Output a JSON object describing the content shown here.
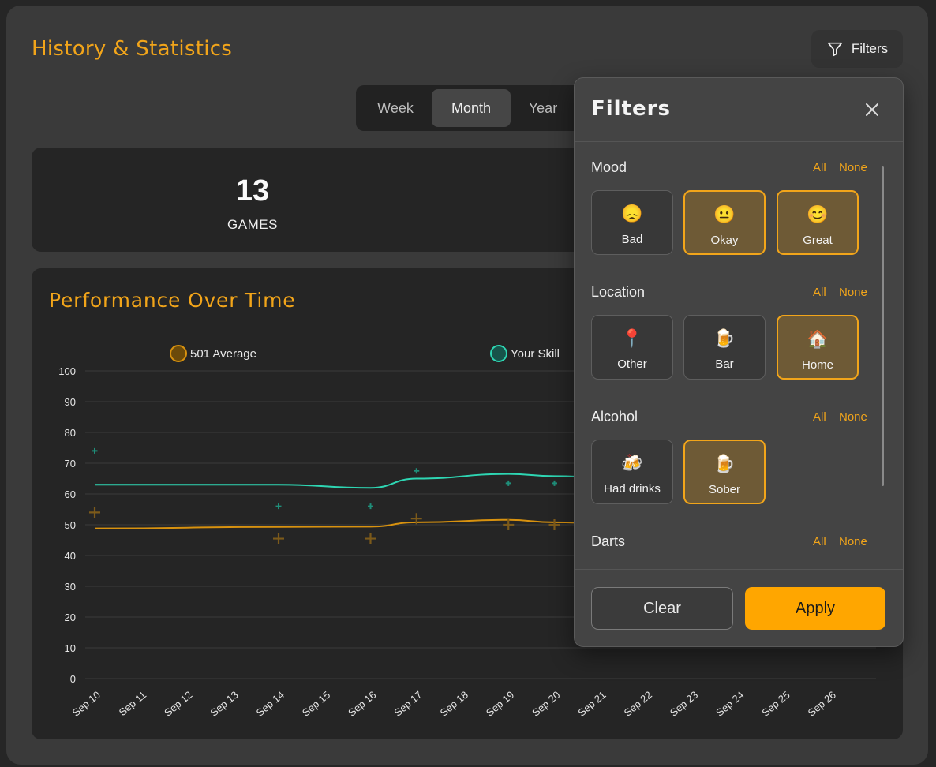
{
  "header": {
    "title": "History & Statistics",
    "filters_label": "Filters"
  },
  "period_tabs": [
    "Week",
    "Month",
    "Year"
  ],
  "active_period": "Month",
  "stats": {
    "games_value": "13",
    "games_label": "GAMES"
  },
  "icons": [
    "filter-icon",
    "close-icon"
  ],
  "colors": {
    "accent": "#f2a51a",
    "skill": "#2ed6b3",
    "average": "#d8920f"
  },
  "chart_data": {
    "type": "line",
    "title": "Performance Over Time",
    "legend": [
      {
        "name": "501 Average",
        "color": "#d8920f"
      },
      {
        "name": "Your Skill",
        "color": "#2ed6b3"
      }
    ],
    "legend_position": "top",
    "ylim": [
      0,
      100
    ],
    "yticks": [
      0,
      10,
      20,
      30,
      40,
      50,
      60,
      70,
      80,
      90,
      100
    ],
    "grid": true,
    "categories": [
      "Sep 10",
      "Sep 11",
      "Sep 12",
      "Sep 13",
      "Sep 14",
      "Sep 15",
      "Sep 16",
      "Sep 17",
      "Sep 18",
      "Sep 19",
      "Sep 20",
      "Sep 21",
      "Sep 22",
      "Sep 23",
      "Sep 24",
      "Sep 25",
      "Sep 26"
    ],
    "series": [
      {
        "name": "Your Skill",
        "marker": "+",
        "points": [
          {
            "x": "Sep 10",
            "y": 74
          },
          {
            "x": "Sep 14",
            "y": 56
          },
          {
            "x": "Sep 16",
            "y": 56
          },
          {
            "x": "Sep 17",
            "y": 67.5
          },
          {
            "x": "Sep 19",
            "y": 63.5
          },
          {
            "x": "Sep 20",
            "y": 63.5
          }
        ],
        "trend": [
          {
            "x": "Sep 10",
            "y": 63
          },
          {
            "x": "Sep 14",
            "y": 63
          },
          {
            "x": "Sep 16",
            "y": 62
          },
          {
            "x": "Sep 17",
            "y": 65
          },
          {
            "x": "Sep 19",
            "y": 66.5
          },
          {
            "x": "Sep 20",
            "y": 65.8
          },
          {
            "x": "Sep 21",
            "y": 65.5
          }
        ]
      },
      {
        "name": "501 Average",
        "marker": "+",
        "points": [
          {
            "x": "Sep 10",
            "y": 54
          },
          {
            "x": "Sep 14",
            "y": 45.5
          },
          {
            "x": "Sep 16",
            "y": 45.5
          },
          {
            "x": "Sep 17",
            "y": 52
          },
          {
            "x": "Sep 19",
            "y": 50
          },
          {
            "x": "Sep 20",
            "y": 50
          }
        ],
        "trend": [
          {
            "x": "Sep 10",
            "y": 48.8
          },
          {
            "x": "Sep 14",
            "y": 49.3
          },
          {
            "x": "Sep 16",
            "y": 49.4
          },
          {
            "x": "Sep 17",
            "y": 50.8
          },
          {
            "x": "Sep 19",
            "y": 51.6
          },
          {
            "x": "Sep 20",
            "y": 50.8
          },
          {
            "x": "Sep 21",
            "y": 50.5
          }
        ]
      }
    ]
  },
  "filters_panel": {
    "title": "Filters",
    "all_label": "All",
    "none_label": "None",
    "sections": [
      {
        "title": "Mood",
        "options": [
          {
            "label": "Bad",
            "icon": "sad-face-icon",
            "emoji": "😞",
            "selected": false
          },
          {
            "label": "Okay",
            "icon": "neutral-face-icon",
            "emoji": "😐",
            "selected": true
          },
          {
            "label": "Great",
            "icon": "smile-face-icon",
            "emoji": "😊",
            "selected": true
          }
        ]
      },
      {
        "title": "Location",
        "options": [
          {
            "label": "Other",
            "icon": "pin-icon",
            "emoji": "📍",
            "selected": false
          },
          {
            "label": "Bar",
            "icon": "beer-mug-icon",
            "emoji": "🍺",
            "selected": false
          },
          {
            "label": "Home",
            "icon": "house-icon",
            "emoji": "🏠",
            "selected": true
          }
        ]
      },
      {
        "title": "Alcohol",
        "options": [
          {
            "label": "Had drinks",
            "icon": "clinking-beers-icon",
            "emoji": "🍻",
            "selected": false
          },
          {
            "label": "Sober",
            "icon": "beer-mug-icon",
            "emoji": "🍺",
            "selected": true
          }
        ]
      },
      {
        "title": "Darts",
        "options": []
      }
    ],
    "clear_label": "Clear",
    "apply_label": "Apply"
  }
}
